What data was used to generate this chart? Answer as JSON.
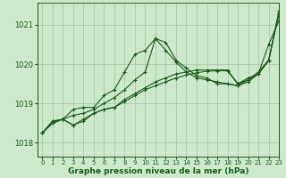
{
  "background_color": "#cde8cd",
  "grid_color": "#aacaaa",
  "line_color": "#1a5c1a",
  "xlabel": "Graphe pression niveau de la mer (hPa)",
  "xlim": [
    -0.5,
    23
  ],
  "ylim": [
    1017.65,
    1021.55
  ],
  "yticks": [
    1018,
    1019,
    1020,
    1021
  ],
  "xticks": [
    0,
    1,
    2,
    3,
    4,
    5,
    6,
    7,
    8,
    9,
    10,
    11,
    12,
    13,
    14,
    15,
    16,
    17,
    18,
    19,
    20,
    21,
    22,
    23
  ],
  "series": [
    {
      "x": [
        0,
        1,
        2,
        3,
        4,
        5,
        6,
        7,
        8,
        9,
        10,
        11,
        12,
        13,
        14,
        15,
        16,
        17,
        18,
        19,
        20,
        21,
        22,
        23
      ],
      "y": [
        1018.25,
        1018.55,
        1018.6,
        1018.85,
        1018.9,
        1018.9,
        1019.2,
        1019.35,
        1019.8,
        1020.25,
        1020.35,
        1020.65,
        1020.55,
        1020.1,
        1019.9,
        1019.7,
        1019.65,
        1019.5,
        1019.5,
        1019.45,
        1019.6,
        1019.8,
        1020.1,
        1021.35
      ]
    },
    {
      "x": [
        0,
        1,
        2,
        3,
        4,
        5,
        6,
        7,
        8,
        9,
        10,
        11,
        12,
        13,
        14,
        15,
        16,
        17,
        18,
        19,
        20,
        21,
        22,
        23
      ],
      "y": [
        1018.25,
        1018.55,
        1018.6,
        1018.7,
        1018.75,
        1018.85,
        1019.0,
        1019.15,
        1019.35,
        1019.6,
        1019.8,
        1020.65,
        1020.35,
        1020.05,
        1019.8,
        1019.65,
        1019.6,
        1019.55,
        1019.5,
        1019.45,
        1019.55,
        1019.75,
        1020.5,
        1021.1
      ]
    },
    {
      "x": [
        0,
        1,
        2,
        3,
        4,
        5,
        6,
        7,
        8,
        9,
        10,
        11,
        12,
        13,
        14,
        15,
        16,
        17,
        18,
        19,
        20,
        21,
        22,
        23
      ],
      "y": [
        1018.25,
        1018.5,
        1018.6,
        1018.45,
        1018.6,
        1018.75,
        1018.85,
        1018.9,
        1019.1,
        1019.25,
        1019.4,
        1019.55,
        1019.65,
        1019.75,
        1019.8,
        1019.85,
        1019.85,
        1019.85,
        1019.85,
        1019.5,
        1019.65,
        1019.75,
        1020.1,
        1021.3
      ]
    },
    {
      "x": [
        0,
        1,
        2,
        3,
        4,
        5,
        6,
        7,
        8,
        9,
        10,
        11,
        12,
        13,
        14,
        15,
        16,
        17,
        18,
        19,
        20,
        21,
        22,
        23
      ],
      "y": [
        1018.25,
        1018.5,
        1018.6,
        1018.45,
        1018.55,
        1018.75,
        1018.85,
        1018.9,
        1019.05,
        1019.2,
        1019.35,
        1019.45,
        1019.55,
        1019.65,
        1019.72,
        1019.78,
        1019.82,
        1019.83,
        1019.83,
        1019.5,
        1019.6,
        1019.75,
        1020.08,
        1021.28
      ]
    }
  ]
}
